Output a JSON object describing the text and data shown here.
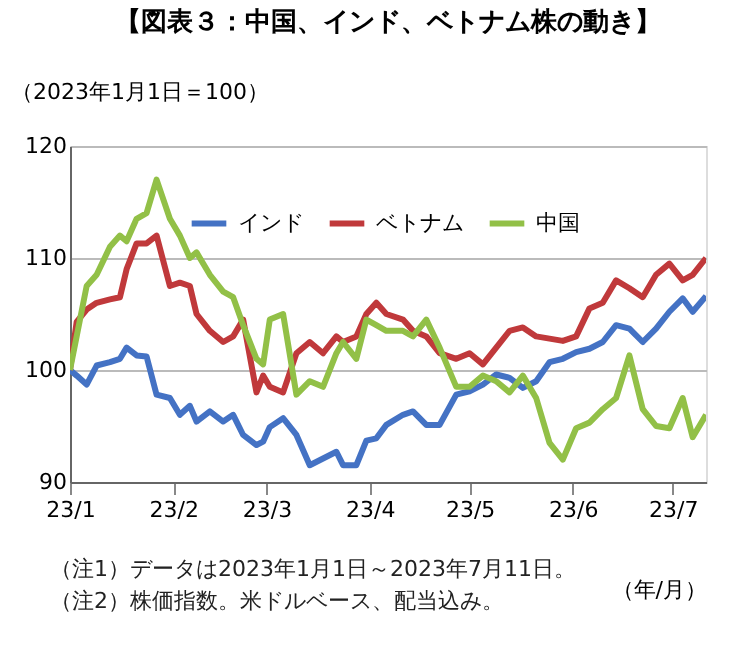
{
  "chart_data": {
    "type": "line",
    "title": "【図表３：中国、インド、ベトナム株の動き】",
    "ylabel": "（2023年1月1日＝100）",
    "xlabel": "（年/月）",
    "x": [
      "2023-01-01",
      "2023-01-03",
      "2023-01-06",
      "2023-01-09",
      "2023-01-13",
      "2023-01-16",
      "2023-01-18",
      "2023-01-21",
      "2023-01-24",
      "2023-01-27",
      "2023-01-31",
      "2023-02-03",
      "2023-02-06",
      "2023-02-08",
      "2023-02-12",
      "2023-02-16",
      "2023-02-19",
      "2023-02-22",
      "2023-02-26",
      "2023-02-28",
      "2023-03-02",
      "2023-03-06",
      "2023-03-10",
      "2023-03-14",
      "2023-03-18",
      "2023-03-22",
      "2023-03-24",
      "2023-03-28",
      "2023-03-31",
      "2023-04-03",
      "2023-04-06",
      "2023-04-11",
      "2023-04-14",
      "2023-04-18",
      "2023-04-22",
      "2023-04-27",
      "2023-05-01",
      "2023-05-05",
      "2023-05-09",
      "2023-05-13",
      "2023-05-17",
      "2023-05-21",
      "2023-05-25",
      "2023-05-29",
      "2023-06-02",
      "2023-06-06",
      "2023-06-10",
      "2023-06-14",
      "2023-06-18",
      "2023-06-22",
      "2023-06-26",
      "2023-06-30",
      "2023-07-04",
      "2023-07-07",
      "2023-07-11"
    ],
    "series": [
      {
        "name": "インド",
        "color": "#4472c4",
        "values": [
          100,
          99.5,
          98.7,
          100.4,
          100.7,
          101,
          102,
          101.3,
          101.2,
          97.8,
          97.5,
          96,
          96.8,
          95.4,
          96.3,
          95.4,
          96,
          94.2,
          93.3,
          93.6,
          94.9,
          95.7,
          94.2,
          91.5,
          92.1,
          92.7,
          91.5,
          91.5,
          93.7,
          93.9,
          95.1,
          96,
          96.3,
          95.1,
          95.1,
          97.8,
          98.1,
          98.7,
          99.6,
          99.3,
          98.4,
          99,
          100.7,
          101,
          101.6,
          101.9,
          102.5,
          104,
          103.7,
          102.5,
          103.7,
          105.2,
          106.4,
          105.2,
          106.6
        ]
      },
      {
        "name": "ベトナム",
        "color": "#c0393b",
        "values": [
          100,
          104.3,
          105.4,
          106,
          106.3,
          106.5,
          109,
          111.3,
          111.3,
          112,
          107.5,
          107.8,
          107.5,
          105,
          103.5,
          102.5,
          103,
          104.5,
          98,
          99.5,
          98.5,
          98,
          101.5,
          102.5,
          101.5,
          103,
          102.5,
          103,
          105,
          106,
          105,
          104.5,
          103.5,
          103,
          101.5,
          101,
          101.5,
          100.5,
          102,
          103.5,
          103.8,
          103,
          102.8,
          102.6,
          103,
          105.5,
          106,
          108,
          107.3,
          106.5,
          108.5,
          109.5,
          108,
          108.5,
          110
        ]
      },
      {
        "name": "中国",
        "color": "#92c047",
        "values": [
          100,
          103,
          107.5,
          108.5,
          111,
          112,
          111.5,
          113.5,
          114,
          117,
          113.5,
          112,
          110,
          110.5,
          108.5,
          107,
          106.5,
          104,
          101,
          100.5,
          104.5,
          105,
          97.8,
          99,
          98.5,
          101.5,
          102.5,
          101,
          104.5,
          104,
          103.5,
          103.5,
          103,
          104.5,
          102,
          98.5,
          98.5,
          99.5,
          99,
          98,
          99.5,
          97.5,
          93.5,
          92,
          94.8,
          95.3,
          96.5,
          97.5,
          101.3,
          96.5,
          95,
          94.8,
          97.5,
          94,
          96
        ]
      }
    ],
    "xlim": [
      "2023-01-01",
      "2023-07-11"
    ],
    "xticks": [
      {
        "value": "2023-01-01",
        "label": "23/1"
      },
      {
        "value": "2023-02-01",
        "label": "23/2"
      },
      {
        "value": "2023-03-01",
        "label": "23/3"
      },
      {
        "value": "2023-04-01",
        "label": "23/4"
      },
      {
        "value": "2023-05-01",
        "label": "23/5"
      },
      {
        "value": "2023-06-01",
        "label": "23/6"
      },
      {
        "value": "2023-07-01",
        "label": "23/7"
      }
    ],
    "ylim": [
      90,
      120
    ],
    "yticks": [
      90,
      100,
      110,
      120
    ],
    "grid": "y",
    "legend": "top",
    "marker": "none",
    "line_style": "solid",
    "annotations": [
      "（注1）データは2023年1月1日～2023年7月11日。",
      "（注2）株価指数。米ドルベース、配当込み。"
    ]
  }
}
